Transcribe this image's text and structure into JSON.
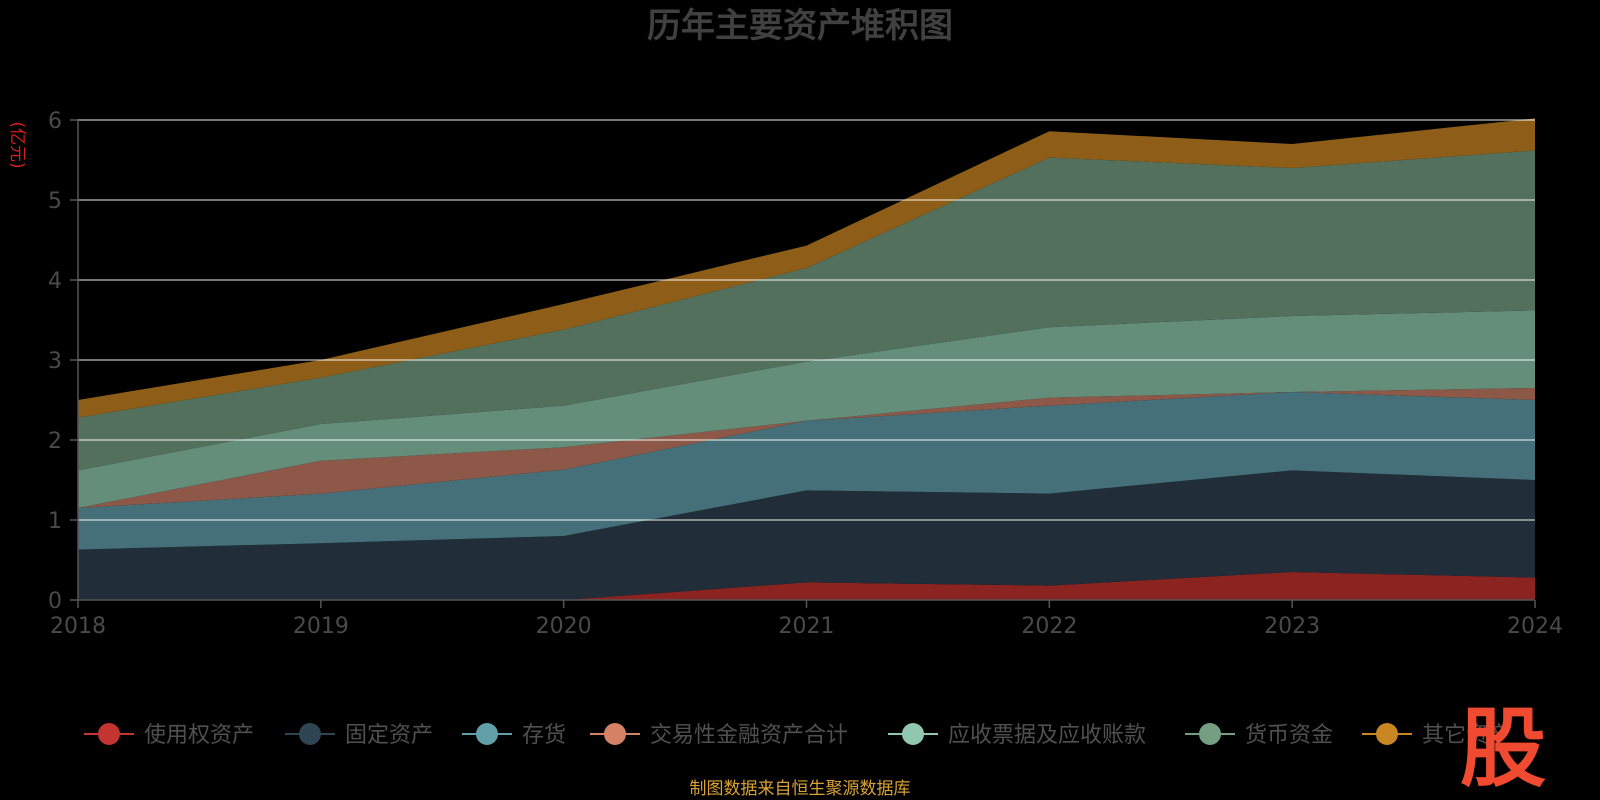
{
  "chart_data": {
    "type": "area",
    "stacked": true,
    "title": "历年主要资产堆积图",
    "unit_label": "(亿元)",
    "xlabel": "",
    "ylabel": "(亿元)",
    "x": [
      "2018",
      "2019",
      "2020",
      "2021",
      "2022",
      "2023",
      "2024"
    ],
    "ylim": [
      0,
      6
    ],
    "yticks": [
      "0",
      "1",
      "2",
      "3",
      "4",
      "5",
      "6"
    ],
    "grid": true,
    "legend_position": "bottom",
    "series": [
      {
        "name": "使用权资产",
        "color": "#c23531",
        "fill": "#8b2320",
        "values": [
          0,
          0,
          0,
          0.22,
          0.18,
          0.35,
          0.28
        ]
      },
      {
        "name": "固定资产",
        "color": "#2f4554",
        "fill": "#212d38",
        "values": [
          0.63,
          0.71,
          0.8,
          1.15,
          1.15,
          1.27,
          1.22
        ]
      },
      {
        "name": "存货",
        "color": "#61a0a8",
        "fill": "#457079",
        "values": [
          0.52,
          0.62,
          0.83,
          0.87,
          1.1,
          0.98,
          1.0
        ]
      },
      {
        "name": "交易性金融资产合计",
        "color": "#d48265",
        "fill": "#8d5848",
        "values": [
          0,
          0.41,
          0.28,
          0,
          0.1,
          0,
          0.15
        ]
      },
      {
        "name": "应收票据及应收账款",
        "color": "#91c7ae",
        "fill": "#648d7a",
        "values": [
          0.47,
          0.46,
          0.52,
          0.74,
          0.88,
          0.95,
          0.97
        ]
      },
      {
        "name": "货币资金",
        "color": "#749f83",
        "fill": "#52705c",
        "values": [
          0.66,
          0.58,
          0.95,
          1.17,
          2.12,
          1.85,
          2.0
        ]
      },
      {
        "name": "其它资产",
        "color": "#ca8622",
        "fill": "#8e5e18",
        "values": [
          0.22,
          0.22,
          0.32,
          0.28,
          0.33,
          0.3,
          0.4
        ]
      }
    ]
  },
  "source_text": "制图数据来自恒生聚源数据库",
  "logo_text": "股"
}
